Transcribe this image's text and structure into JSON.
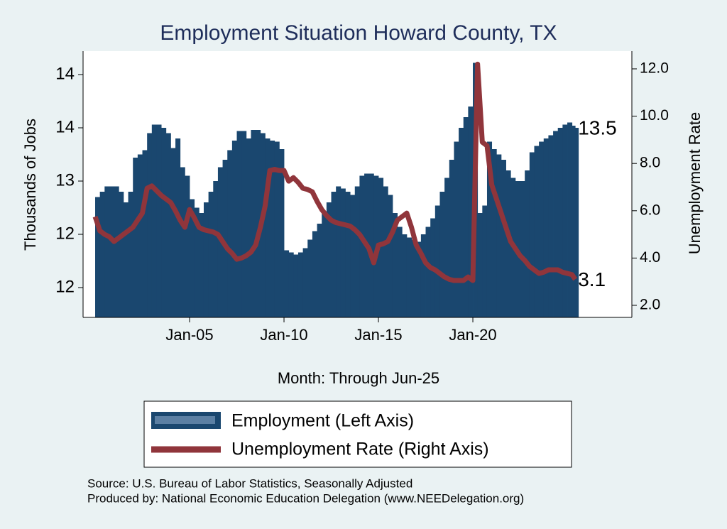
{
  "chart_data": {
    "type": "bar-line",
    "title": "Employment Situation Howard  County, TX",
    "x_label": "Month: Through Jun-25",
    "y_label": "Thousands of Jobs",
    "y2_label": "Unemployment Rate",
    "source": "Source: U.S. Bureau of Labor Statistics, Seasonally Adjusted",
    "producer": "Produced by: National Economic Education Delegation (www.NEEDelegation.org)",
    "x": [
      2000,
      2000.25,
      2000.5,
      2000.75,
      2001,
      2001.25,
      2001.5,
      2001.75,
      2002,
      2002.25,
      2002.5,
      2002.75,
      2003,
      2003.25,
      2003.5,
      2003.75,
      2004,
      2004.25,
      2004.5,
      2004.75,
      2005,
      2005.25,
      2005.5,
      2005.75,
      2006,
      2006.25,
      2006.5,
      2006.75,
      2007,
      2007.25,
      2007.5,
      2007.75,
      2008,
      2008.25,
      2008.5,
      2008.75,
      2009,
      2009.25,
      2009.5,
      2009.75,
      2010,
      2010.25,
      2010.5,
      2010.75,
      2011,
      2011.25,
      2011.5,
      2011.75,
      2012,
      2012.25,
      2012.5,
      2012.75,
      2013,
      2013.25,
      2013.5,
      2013.75,
      2014,
      2014.25,
      2014.5,
      2014.75,
      2015,
      2015.25,
      2015.5,
      2015.75,
      2016,
      2016.25,
      2016.5,
      2016.75,
      2017,
      2017.25,
      2017.5,
      2017.75,
      2018,
      2018.25,
      2018.5,
      2018.75,
      2019,
      2019.25,
      2019.5,
      2019.75,
      2020,
      2020.25,
      2020.5,
      2020.75,
      2021,
      2021.25,
      2021.5,
      2021.75,
      2022,
      2022.25,
      2022.5,
      2022.75,
      2023,
      2023.25,
      2023.5,
      2023.75,
      2024,
      2024.25,
      2024.5,
      2024.75,
      2025,
      2025.25,
      2025.42
    ],
    "series": [
      {
        "name": "Employment (Left Axis)",
        "color": "#1a476f",
        "axis": "y",
        "values": [
          12.85,
          12.9,
          12.95,
          12.95,
          12.95,
          12.9,
          12.8,
          12.9,
          13.22,
          13.25,
          13.29,
          13.45,
          13.53,
          13.53,
          13.5,
          13.45,
          13.31,
          13.4,
          13.13,
          13.05,
          12.83,
          12.75,
          12.7,
          12.8,
          12.9,
          13.0,
          13.13,
          13.2,
          13.29,
          13.38,
          13.47,
          13.47,
          13.4,
          13.48,
          13.48,
          13.45,
          13.4,
          13.38,
          13.37,
          13.3,
          12.35,
          12.33,
          12.31,
          12.33,
          12.37,
          12.45,
          12.53,
          12.6,
          12.7,
          12.8,
          12.9,
          12.95,
          12.93,
          12.9,
          12.87,
          12.95,
          13.05,
          13.07,
          13.07,
          13.05,
          13.03,
          12.95,
          12.87,
          12.7,
          12.57,
          12.5,
          12.47,
          12.45,
          12.43,
          12.5,
          12.57,
          12.65,
          12.77,
          12.9,
          13.03,
          13.2,
          13.37,
          13.5,
          13.6,
          13.7,
          14.11,
          12.7,
          12.77,
          13.37,
          13.3,
          13.25,
          13.2,
          13.1,
          13.03,
          13.0,
          13.0,
          13.1,
          13.27,
          13.33,
          13.37,
          13.4,
          13.43,
          13.47,
          13.5,
          13.53,
          13.55,
          13.52,
          13.5
        ]
      },
      {
        "name": "Unemployment Rate (Right Axis)",
        "color": "#90353b",
        "axis": "y2",
        "values": [
          5.75,
          5.15,
          5.0,
          4.9,
          4.7,
          4.85,
          5.0,
          5.15,
          5.3,
          5.6,
          5.9,
          6.95,
          7.05,
          6.85,
          6.65,
          6.5,
          6.35,
          6.0,
          5.6,
          5.3,
          6.05,
          5.7,
          5.3,
          5.2,
          5.15,
          5.1,
          5.0,
          4.7,
          4.4,
          4.2,
          3.95,
          4.0,
          4.1,
          4.25,
          4.55,
          5.3,
          6.2,
          7.7,
          7.75,
          7.7,
          7.7,
          7.25,
          7.4,
          7.2,
          6.95,
          6.9,
          6.8,
          6.4,
          6.05,
          5.8,
          5.6,
          5.5,
          5.45,
          5.4,
          5.35,
          5.2,
          5.0,
          4.7,
          4.4,
          3.8,
          4.55,
          4.6,
          4.7,
          5.1,
          5.6,
          5.75,
          5.9,
          5.3,
          4.55,
          4.2,
          3.8,
          3.6,
          3.5,
          3.35,
          3.2,
          3.1,
          3.05,
          3.05,
          3.05,
          3.2,
          3.05,
          12.2,
          8.9,
          8.75,
          7.1,
          6.5,
          5.9,
          5.3,
          4.7,
          4.4,
          4.1,
          3.9,
          3.65,
          3.5,
          3.35,
          3.4,
          3.5,
          3.5,
          3.5,
          3.4,
          3.35,
          3.3,
          3.1
        ]
      }
    ],
    "xlim": [
      1999.36,
      2028.42
    ],
    "xticks": [
      {
        "value": 2005,
        "label": "Jan-05"
      },
      {
        "value": 2010,
        "label": "Jan-10"
      },
      {
        "value": 2015,
        "label": "Jan-15"
      },
      {
        "value": 2020,
        "label": "Jan-20"
      }
    ],
    "ylim": [
      11.72,
      14.22
    ],
    "yticks": [
      {
        "value": 12,
        "label": "12"
      },
      {
        "value": 12.5,
        "label": "12"
      },
      {
        "value": 13,
        "label": "13"
      },
      {
        "value": 13.5,
        "label": "14"
      },
      {
        "value": 14,
        "label": "14"
      }
    ],
    "y2lim": [
      1.49,
      12.75
    ],
    "y2ticks": [
      {
        "value": 2,
        "label": "2.0"
      },
      {
        "value": 4,
        "label": "4.0"
      },
      {
        "value": 6,
        "label": "6.0"
      },
      {
        "value": 8,
        "label": "8.0"
      },
      {
        "value": 10,
        "label": "10.0"
      },
      {
        "value": 12,
        "label": "12.0"
      }
    ]
  }
}
